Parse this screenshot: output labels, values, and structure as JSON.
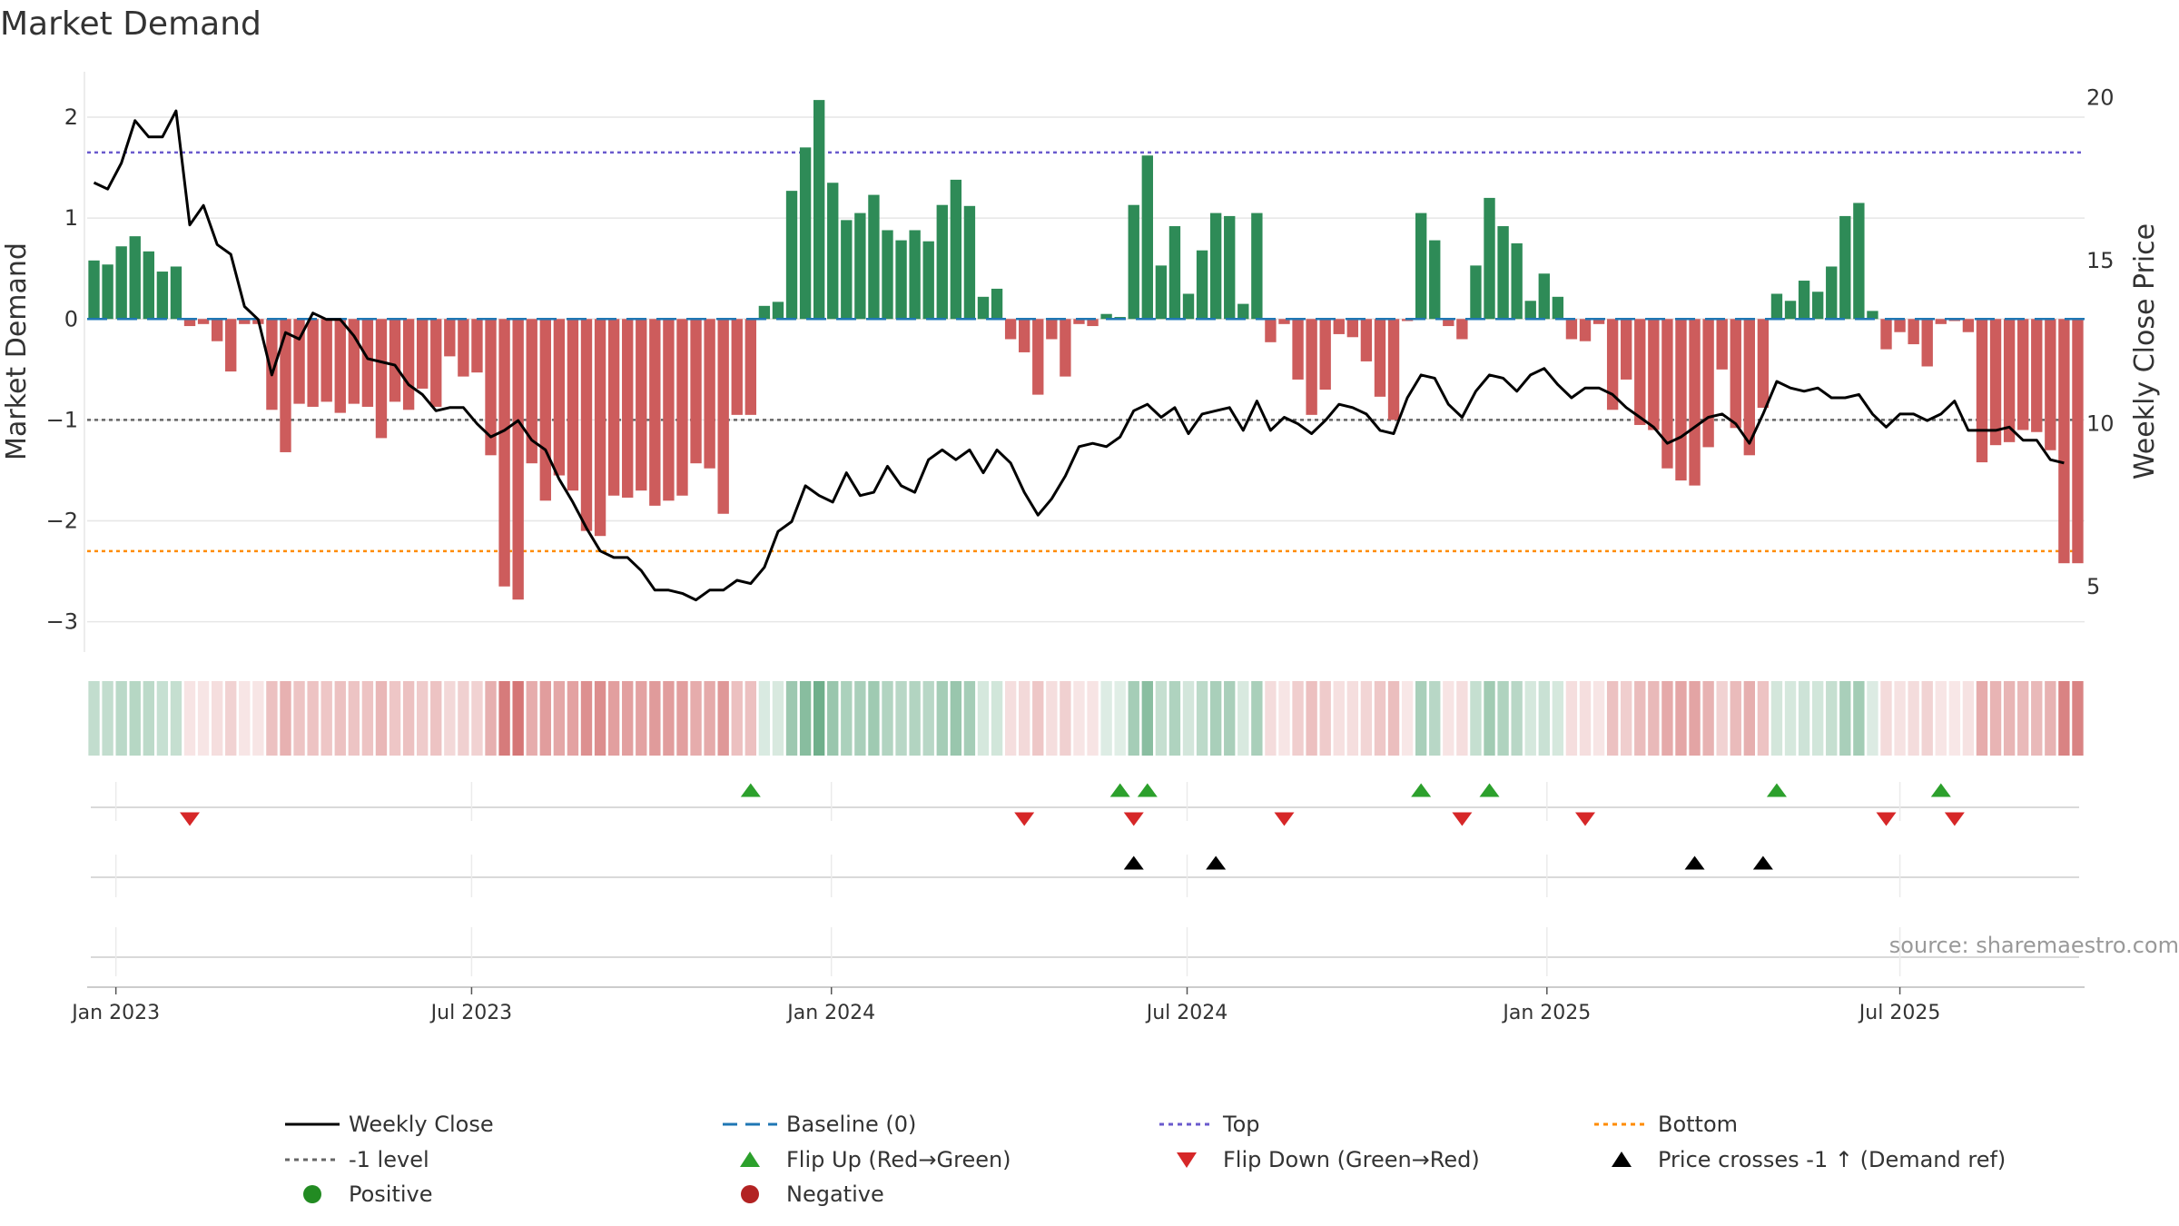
{
  "chart_data": {
    "type": "bar+line",
    "title": "Market Demand",
    "y_left_label": "Market Demand",
    "y_right_label": "Weekly Close Price",
    "y_left_ticks": [
      "2",
      "1",
      "0",
      "−1",
      "−2",
      "−3"
    ],
    "y_left_tick_values": [
      2,
      1,
      0,
      -1,
      -2,
      -3
    ],
    "y_right_ticks": [
      "20",
      "15",
      "10",
      "5"
    ],
    "y_right_tick_values": [
      20,
      15,
      10,
      5
    ],
    "ylim_left": [
      -3.3,
      2.45
    ],
    "ylim_right": [
      3.0,
      20.8
    ],
    "x_ticks": [
      "Jan 2023",
      "Jul 2023",
      "Jan 2024",
      "Jul 2024",
      "Jan 2025",
      "Jul 2025"
    ],
    "x_tick_weeks": [
      1.6,
      27.6,
      53.9,
      79.9,
      106.2,
      132.0
    ],
    "reference_lines": {
      "top": 1.65,
      "minus_one": -1.0,
      "bottom": -2.3,
      "baseline": 0
    },
    "demand": [
      0.58,
      0.54,
      0.72,
      0.82,
      0.67,
      0.47,
      0.52,
      -0.07,
      -0.05,
      -0.22,
      -0.52,
      -0.05,
      -0.05,
      -0.9,
      -1.32,
      -0.84,
      -0.87,
      -0.82,
      -0.93,
      -0.84,
      -0.87,
      -1.18,
      -0.82,
      -0.9,
      -0.69,
      -0.87,
      -0.37,
      -0.57,
      -0.53,
      -1.35,
      -2.65,
      -2.78,
      -1.43,
      -1.8,
      -1.55,
      -1.7,
      -2.1,
      -2.15,
      -1.75,
      -1.77,
      -1.7,
      -1.85,
      -1.8,
      -1.75,
      -1.43,
      -1.48,
      -1.93,
      -0.95,
      -0.95,
      0.13,
      0.17,
      1.27,
      1.7,
      2.17,
      1.35,
      0.98,
      1.05,
      1.23,
      0.88,
      0.78,
      0.88,
      0.77,
      1.13,
      1.38,
      1.12,
      0.22,
      0.3,
      -0.2,
      -0.33,
      -0.75,
      -0.2,
      -0.57,
      -0.05,
      -0.07,
      0.05,
      0.02,
      1.13,
      1.62,
      0.53,
      0.92,
      0.25,
      0.68,
      1.05,
      1.02,
      0.15,
      1.05,
      -0.23,
      -0.05,
      -0.6,
      -0.95,
      -0.7,
      -0.15,
      -0.18,
      -0.42,
      -0.77,
      -1.0,
      -0.02,
      1.05,
      0.78,
      -0.07,
      -0.2,
      0.53,
      1.2,
      0.92,
      0.75,
      0.18,
      0.45,
      0.22,
      -0.2,
      -0.22,
      -0.05,
      -0.9,
      -0.6,
      -1.05,
      -1.1,
      -1.48,
      -1.6,
      -1.65,
      -1.27,
      -0.5,
      -1.08,
      -1.35,
      -0.88,
      0.25,
      0.18,
      0.38,
      0.27,
      0.52,
      1.02,
      1.15,
      0.08,
      -0.3,
      -0.13,
      -0.25,
      -0.47,
      -0.05,
      -0.02,
      -0.13,
      -1.42,
      -1.25,
      -1.22,
      -1.1,
      -1.12,
      -1.3,
      -2.42,
      -2.42
    ],
    "close": [
      17.4,
      17.2,
      18.0,
      19.3,
      18.8,
      18.8,
      19.6,
      16.1,
      16.7,
      15.5,
      15.2,
      13.6,
      13.2,
      11.5,
      12.8,
      12.6,
      13.4,
      13.2,
      13.2,
      12.7,
      12.0,
      11.9,
      11.8,
      11.2,
      10.9,
      10.4,
      10.5,
      10.5,
      10.0,
      9.6,
      9.8,
      10.1,
      9.5,
      9.2,
      8.3,
      7.6,
      6.8,
      6.1,
      5.9,
      5.9,
      5.5,
      4.9,
      4.9,
      4.8,
      4.6,
      4.9,
      4.9,
      5.2,
      5.1,
      5.6,
      6.7,
      7.0,
      8.1,
      7.8,
      7.6,
      8.5,
      7.8,
      7.9,
      8.7,
      8.1,
      7.9,
      8.9,
      9.2,
      8.9,
      9.2,
      8.5,
      9.2,
      8.8,
      7.9,
      7.2,
      7.7,
      8.4,
      9.3,
      9.4,
      9.3,
      9.6,
      10.4,
      10.6,
      10.2,
      10.5,
      9.7,
      10.3,
      10.4,
      10.5,
      9.8,
      10.7,
      9.8,
      10.2,
      10.0,
      9.7,
      10.1,
      10.6,
      10.5,
      10.3,
      9.8,
      9.7,
      10.8,
      11.5,
      11.4,
      10.6,
      10.2,
      11.0,
      11.5,
      11.4,
      11.0,
      11.5,
      11.7,
      11.2,
      10.8,
      11.1,
      11.1,
      10.9,
      10.5,
      10.2,
      9.9,
      9.4,
      9.6,
      9.9,
      10.2,
      10.3,
      10.0,
      9.4,
      10.3,
      11.3,
      11.1,
      11.0,
      11.1,
      10.8,
      10.8,
      10.9,
      10.3,
      9.9,
      10.3,
      10.3,
      10.1,
      10.3,
      10.7,
      9.8,
      9.8,
      9.8,
      9.9,
      9.5,
      9.5,
      8.9,
      8.8
    ],
    "flip_up_weeks": [
      48,
      75,
      77,
      97,
      102,
      123,
      135
    ],
    "flip_down_weeks": [
      7,
      68,
      76,
      87,
      100,
      109,
      131,
      136
    ],
    "price_cross_weeks": [
      76,
      82,
      117,
      122
    ],
    "legend": [
      "Weekly Close",
      "Baseline (0)",
      "Top",
      "Bottom",
      "-1 level",
      "Flip Up (Red→Green)",
      "Flip Down (Green→Red)",
      "Price crosses -1 ↑ (Demand ref)",
      "Positive",
      "Negative"
    ],
    "colors": {
      "positive": "#2e8b57",
      "negative": "#cd5c5c",
      "close": "#000000",
      "baseline": "#1f77b4",
      "top": "#6a5acd",
      "bottom": "#ff8c00",
      "minus_one": "#666666",
      "flip_up": "#2ca02c",
      "flip_down": "#d62728",
      "cross": "#000000",
      "legend_positive": "#228b22",
      "legend_negative": "#b22222"
    },
    "source": "source: sharemaestro.com"
  }
}
